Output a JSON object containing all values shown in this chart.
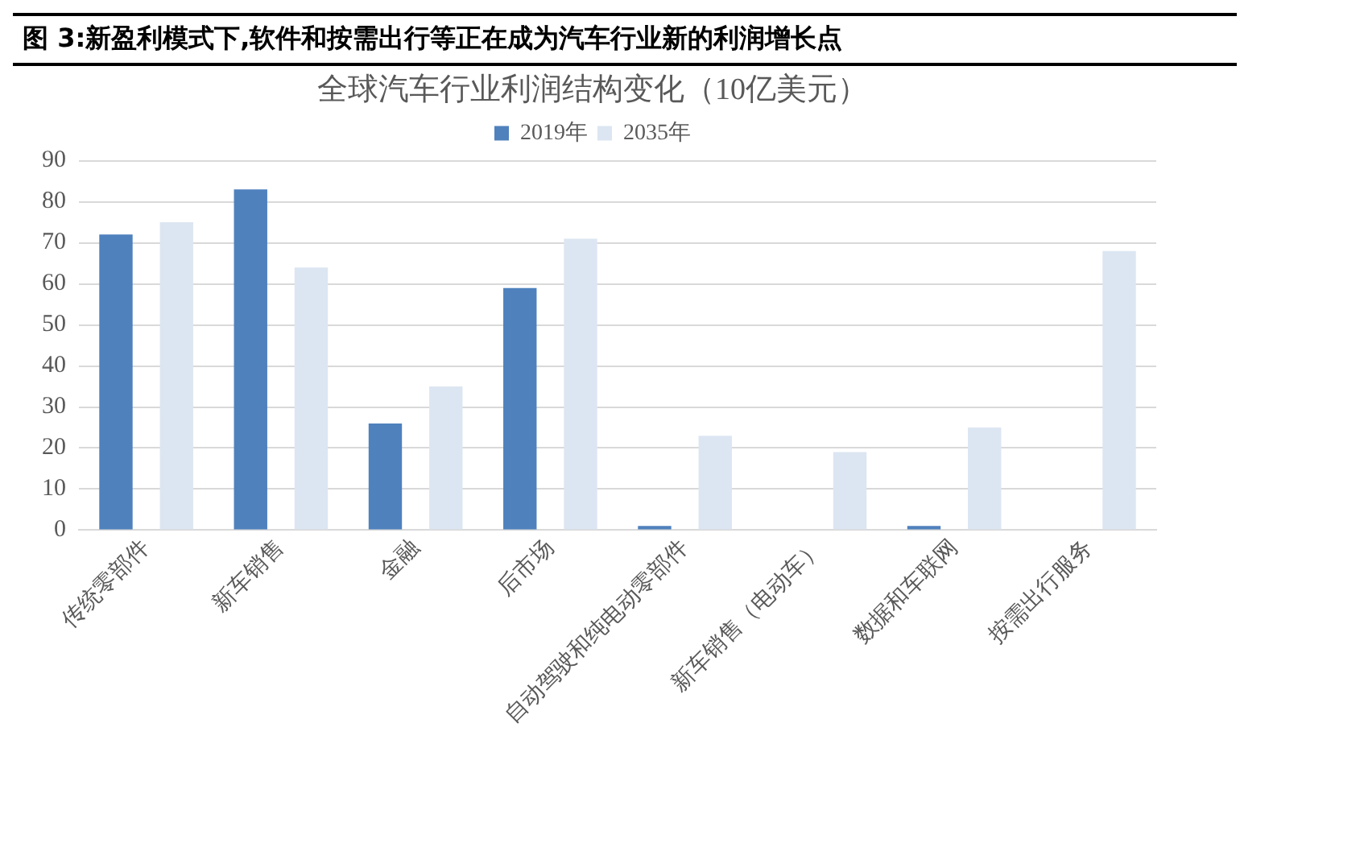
{
  "chart_data": {
    "type": "bar",
    "title": "图 3:新盈利模式下,软件和按需出行等正在成为汽车行业新的利润增长点",
    "subtitle": "全球汽车行业利润结构变化（10亿美元）",
    "categories": [
      "传统零部件",
      "新车销售",
      "金融",
      "后市场",
      "自动驾驶和纯电动零部件",
      "新车销售（电动车）",
      "数据和车联网",
      "按需出行服务"
    ],
    "series": [
      {
        "name": "2019年",
        "color": "#4f81bd",
        "values": [
          72,
          83,
          26,
          59,
          1,
          0,
          1,
          0
        ]
      },
      {
        "name": "2035年",
        "color": "#dce6f2",
        "values": [
          75,
          64,
          35,
          71,
          23,
          19,
          25,
          68
        ]
      }
    ],
    "ylim": [
      0,
      90
    ],
    "yticks": [
      0,
      10,
      20,
      30,
      40,
      50,
      60,
      70,
      80,
      90
    ],
    "grid": "y",
    "legend": "top"
  }
}
